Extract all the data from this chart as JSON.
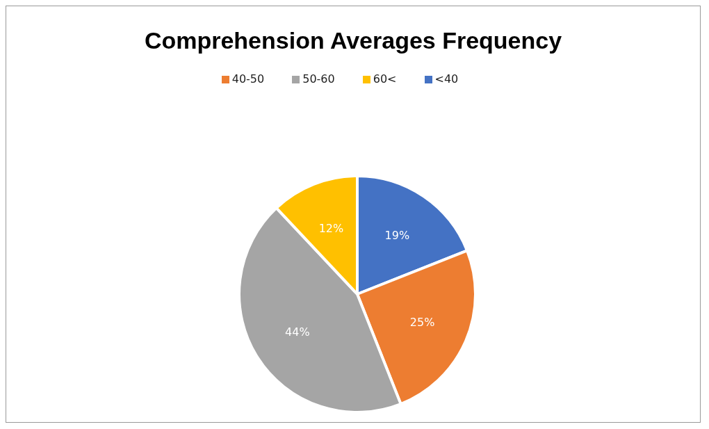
{
  "chart_data": {
    "type": "pie",
    "title": "Comprehension Averages Frequency",
    "categories": [
      "<40",
      "40-50",
      "50-60",
      "60<"
    ],
    "values": [
      19,
      25,
      44,
      12
    ],
    "value_labels": [
      "19%",
      "25%",
      "44%",
      "12%"
    ],
    "colors": [
      "#4472c4",
      "#ed7d31",
      "#a5a5a5",
      "#ffc000"
    ],
    "legend": "top"
  }
}
